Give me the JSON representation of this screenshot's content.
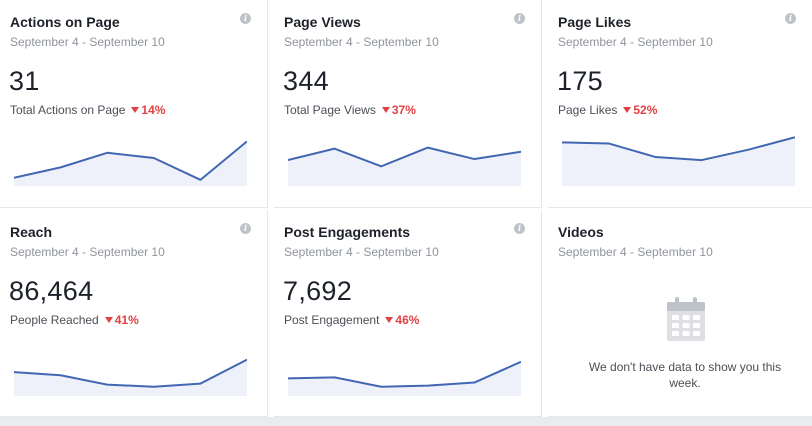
{
  "cards": [
    {
      "title": "Actions on Page",
      "date_range": "September 4 - September 10",
      "value": "31",
      "label": "Total Actions on Page",
      "change": "14%",
      "spark": [
        0.12,
        0.32,
        0.6,
        0.5,
        0.08,
        0.82
      ]
    },
    {
      "title": "Page Views",
      "date_range": "September 4 - September 10",
      "value": "344",
      "label": "Total Page Views",
      "change": "37%",
      "spark": [
        0.46,
        0.68,
        0.34,
        0.7,
        0.48,
        0.62
      ]
    },
    {
      "title": "Page Likes",
      "date_range": "September 4 - September 10",
      "value": "175",
      "label": "Page Likes",
      "change": "52%",
      "spark": [
        0.8,
        0.78,
        0.52,
        0.46,
        0.66,
        0.9
      ]
    },
    {
      "title": "Reach",
      "date_range": "September 4 - September 10",
      "value": "86,464",
      "label": "People Reached",
      "change": "41%",
      "spark": [
        0.42,
        0.36,
        0.18,
        0.14,
        0.2,
        0.66
      ]
    },
    {
      "title": "Post Engagements",
      "date_range": "September 4 - September 10",
      "value": "7,692",
      "label": "Post Engagement",
      "change": "46%",
      "spark": [
        0.3,
        0.32,
        0.14,
        0.16,
        0.22,
        0.62
      ]
    }
  ],
  "videos": {
    "title": "Videos",
    "date_range": "September 4 - September 10",
    "empty_message": "We don't have data to show you this week."
  },
  "colors": {
    "line": "#4267b2",
    "fill": "#eef1fa",
    "decline": "#e14045"
  },
  "icons": {
    "info": "info-icon",
    "decline": "down-triangle-icon",
    "empty": "calendar-icon"
  }
}
